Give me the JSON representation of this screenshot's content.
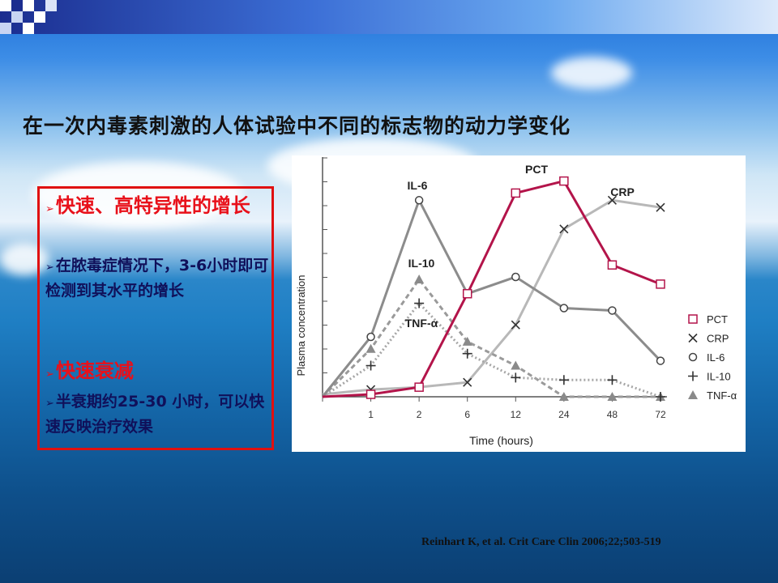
{
  "slide": {
    "title": "在一次内毒素刺激的人体试验中不同的标志物的动力学变化",
    "bullets": [
      {
        "text": "快速、高特异性的增长",
        "style": "red"
      },
      {
        "text": "在脓毒症情况下，3-6小时即可检测到其水平的增长",
        "style": "blue"
      },
      {
        "text": "快速衰减",
        "style": "red"
      },
      {
        "text": "半衰期约25-30 小时，可以快速反映治疗效果",
        "style": "blue"
      }
    ],
    "citation": "Reinhart K, et al. Crit Care Clin 2006;22;503-519"
  },
  "chart_data": {
    "type": "line",
    "xlabel": "Time (hours)",
    "ylabel": "Plasma concentration",
    "categories": [
      "",
      "1",
      "2",
      "6",
      "12",
      "24",
      "48",
      "72"
    ],
    "ylim": [
      0,
      10
    ],
    "series": [
      {
        "name": "PCT",
        "color": "#b3144a",
        "marker": "square",
        "dash": "solid",
        "values": [
          0,
          0.1,
          0.4,
          4.3,
          8.5,
          9.0,
          5.5,
          4.7
        ]
      },
      {
        "name": "CRP",
        "color": "#b8b8b8",
        "marker": "x",
        "dash": "solid",
        "values": [
          0.1,
          0.3,
          0.4,
          0.6,
          3.0,
          7.0,
          8.2,
          7.9
        ]
      },
      {
        "name": "IL-6",
        "color": "#8c8c8c",
        "marker": "circle",
        "dash": "solid",
        "values": [
          0,
          2.5,
          8.2,
          4.3,
          5.0,
          3.7,
          3.6,
          1.5
        ]
      },
      {
        "name": "IL-10",
        "color": "#a6a6a6",
        "marker": "plus",
        "dash": "dotted",
        "values": [
          0,
          1.3,
          3.9,
          1.8,
          0.8,
          0.7,
          0.7,
          0.0
        ]
      },
      {
        "name": "TNF-α",
        "color": "#9a9a9a",
        "marker": "triangle",
        "dash": "dashed",
        "values": [
          0,
          2.0,
          4.9,
          2.3,
          1.3,
          0.0,
          0.0,
          0.0
        ]
      }
    ],
    "annotations": [
      "IL-6",
      "PCT",
      "CRP",
      "IL-10",
      "TNF-α"
    ],
    "legend_position": "right",
    "grid": false
  }
}
